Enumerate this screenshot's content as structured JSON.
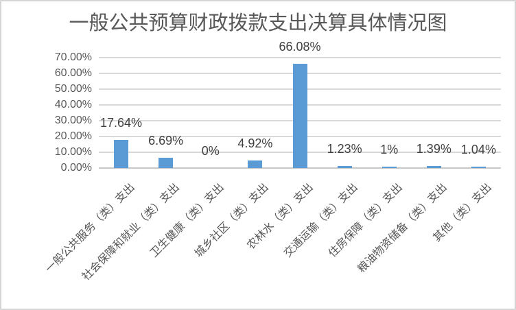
{
  "chart_data": {
    "type": "bar",
    "title": "一般公共预算财政拨款支出决算具体情况图",
    "categories": [
      "一般公共服务（类）支出",
      "社会保障和就业（类）支出",
      "卫生健康（类）支出",
      "城乡社区（类）支出",
      "农林水（类）支出",
      "交通运输（类）支出",
      "住房保障（类）支出",
      "粮油物资储备（类）支出",
      "其他（类）支出"
    ],
    "values": [
      17.64,
      6.69,
      0,
      4.92,
      66.08,
      1.23,
      1,
      1.39,
      1.04
    ],
    "data_labels": [
      "17.64%",
      "6.69%",
      "0%",
      "4.92%",
      "66.08%",
      "1.23%",
      "1%",
      "1.39%",
      "1.04%"
    ],
    "y_tick_labels": [
      "0.00%",
      "10.00%",
      "20.00%",
      "30.00%",
      "40.00%",
      "50.00%",
      "60.00%",
      "70.00%"
    ],
    "ylim": [
      0,
      70
    ],
    "y_tick_step": 10,
    "xlabel": "",
    "ylabel": "",
    "grid": true,
    "legend_position": "none",
    "x_label_rotation_deg": 45,
    "colors": {
      "bar": "#5B9BD5",
      "gridline": "#D9D9D9",
      "axis_line": "#C8C8C8",
      "title_text": "#595959",
      "axis_text": "#595959",
      "data_label_text": "#404040",
      "background": "#FFFFFF",
      "border": "#D5D5D5"
    }
  }
}
